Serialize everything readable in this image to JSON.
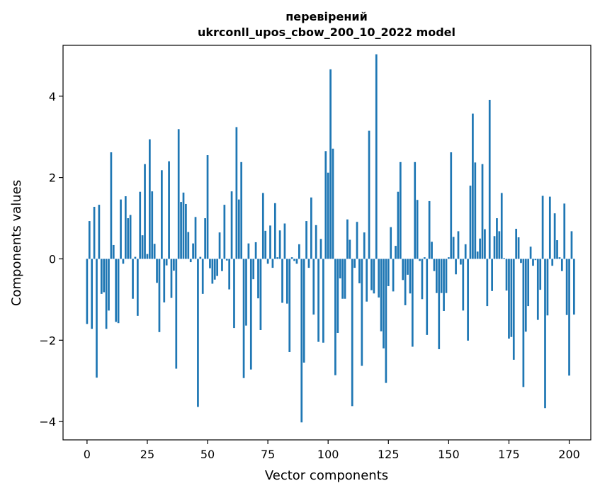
{
  "chart_data": {
    "type": "bar",
    "title_lines": [
      "перевірений",
      "ukrconll_upos_cbow_200_10_2022 model"
    ],
    "xlabel": "Vector components",
    "ylabel": "Components values",
    "xlim": [
      -9.95,
      208.95
    ],
    "ylim": [
      -4.45,
      5.25
    ],
    "xticks": [
      0,
      25,
      50,
      75,
      100,
      125,
      150,
      175,
      200
    ],
    "yticks": [
      -4,
      -2,
      0,
      2,
      4
    ],
    "xtick_labels": [
      "0",
      "25",
      "50",
      "75",
      "100",
      "125",
      "150",
      "175",
      "200"
    ],
    "ytick_labels": [
      "−4",
      "−2",
      "0",
      "2",
      "4"
    ],
    "grid": false,
    "legend": "none",
    "bar_color": "#1f77b4",
    "series": [
      {
        "values": [
          -1.6,
          0.93,
          -1.72,
          1.28,
          -2.92,
          1.33,
          -0.86,
          -0.82,
          -1.72,
          -1.27,
          2.62,
          0.34,
          -1.55,
          -1.58,
          1.46,
          -0.12,
          1.54,
          1.0,
          1.08,
          -0.98,
          0.05,
          -1.4,
          1.65,
          0.58,
          2.33,
          0.12,
          2.94,
          1.66,
          0.37,
          -0.59,
          -1.8,
          2.18,
          -1.07,
          -0.16,
          2.4,
          -0.96,
          -0.29,
          -2.7,
          3.19,
          1.4,
          1.63,
          1.35,
          0.66,
          -0.08,
          0.38,
          1.03,
          -3.64,
          0.05,
          -0.86,
          1.0,
          2.55,
          -0.23,
          -0.61,
          -0.51,
          -0.42,
          0.65,
          -0.3,
          1.33,
          -0.04,
          -0.75,
          1.66,
          -1.7,
          3.24,
          1.46,
          2.38,
          -2.93,
          -1.64,
          0.38,
          -2.72,
          -0.5,
          0.41,
          -0.97,
          -1.75,
          1.62,
          0.69,
          -0.12,
          0.82,
          -0.22,
          1.37,
          0.04,
          0.7,
          -1.08,
          0.87,
          -1.1,
          -2.29,
          0.04,
          -0.05,
          -0.12,
          0.36,
          -4.02,
          -2.55,
          0.93,
          -0.22,
          1.51,
          -1.37,
          0.83,
          -2.04,
          0.49,
          -2.06,
          2.65,
          2.12,
          4.66,
          2.71,
          -2.86,
          -1.82,
          -0.48,
          -0.98,
          -0.98,
          0.97,
          0.47,
          -3.62,
          -0.22,
          0.91,
          -0.6,
          -2.63,
          0.65,
          -1.05,
          3.15,
          -0.77,
          -0.85,
          5.03,
          -0.95,
          -1.78,
          -2.2,
          -3.05,
          -0.67,
          0.78,
          -0.8,
          0.32,
          1.65,
          2.38,
          -0.52,
          -1.14,
          -0.39,
          -0.85,
          -2.16,
          2.38,
          1.45,
          -0.05,
          -0.99,
          0.04,
          -1.87,
          1.42,
          0.42,
          -0.3,
          -0.84,
          -2.22,
          -0.84,
          -1.28,
          -0.84,
          0.04,
          2.62,
          0.54,
          -0.38,
          0.68,
          -0.14,
          -1.27,
          0.36,
          -2.01,
          1.8,
          3.57,
          2.37,
          0.18,
          0.5,
          2.33,
          0.73,
          -1.16,
          3.91,
          -0.79,
          0.56,
          1.0,
          0.68,
          1.62,
          0.02,
          -0.78,
          -1.96,
          -1.92,
          -2.48,
          0.74,
          0.53,
          -0.1,
          -3.15,
          -1.79,
          -1.16,
          0.3,
          -0.17,
          -0.03,
          -1.5,
          -0.76,
          1.55,
          -3.67,
          -1.39,
          1.53,
          -0.17,
          1.12,
          0.46,
          0.04,
          -0.3,
          1.36,
          -1.38,
          -2.87,
          0.68,
          -1.37
        ]
      }
    ]
  }
}
